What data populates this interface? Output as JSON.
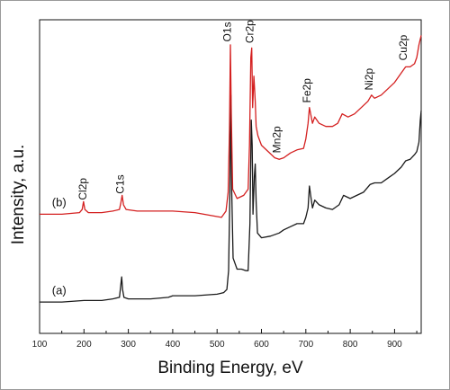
{
  "chart_data": {
    "type": "line",
    "title": "",
    "xlabel": "Binding Energy, eV",
    "ylabel": "Intensity, a.u.",
    "xlim": [
      100,
      960
    ],
    "ylim": [
      0,
      10
    ],
    "x_ticks": [
      100,
      200,
      300,
      400,
      500,
      600,
      700,
      800,
      900
    ],
    "x_tick_labels": [
      "100",
      "200",
      "300",
      "400",
      "500",
      "600",
      "700",
      "800",
      "900"
    ],
    "grid": false,
    "legend": "none",
    "series": [
      {
        "name": "(a)",
        "color": "#1a1a1a",
        "points": [
          [
            100,
            1.0
          ],
          [
            150,
            1.0
          ],
          [
            200,
            1.05
          ],
          [
            240,
            1.05
          ],
          [
            265,
            1.1
          ],
          [
            280,
            1.15
          ],
          [
            282,
            1.4
          ],
          [
            285,
            1.8
          ],
          [
            287,
            1.4
          ],
          [
            290,
            1.15
          ],
          [
            300,
            1.1
          ],
          [
            350,
            1.1
          ],
          [
            390,
            1.15
          ],
          [
            400,
            1.2
          ],
          [
            450,
            1.2
          ],
          [
            500,
            1.25
          ],
          [
            515,
            1.3
          ],
          [
            522,
            1.4
          ],
          [
            526,
            2.0
          ],
          [
            529,
            4.6
          ],
          [
            531,
            7.6
          ],
          [
            533,
            4.5
          ],
          [
            536,
            2.4
          ],
          [
            545,
            2.05
          ],
          [
            555,
            2.05
          ],
          [
            565,
            2.0
          ],
          [
            570,
            2.0
          ],
          [
            574,
            3.5
          ],
          [
            577,
            6.8
          ],
          [
            579,
            6.0
          ],
          [
            581,
            3.8
          ],
          [
            584,
            5.0
          ],
          [
            586,
            5.4
          ],
          [
            588,
            4.2
          ],
          [
            591,
            3.2
          ],
          [
            600,
            3.05
          ],
          [
            620,
            3.1
          ],
          [
            640,
            3.2
          ],
          [
            650,
            3.3
          ],
          [
            665,
            3.4
          ],
          [
            680,
            3.5
          ],
          [
            695,
            3.5
          ],
          [
            700,
            3.7
          ],
          [
            705,
            4.0
          ],
          [
            708,
            4.7
          ],
          [
            711,
            4.4
          ],
          [
            715,
            4.0
          ],
          [
            720,
            4.25
          ],
          [
            730,
            4.1
          ],
          [
            745,
            4.0
          ],
          [
            760,
            3.95
          ],
          [
            775,
            4.1
          ],
          [
            785,
            4.4
          ],
          [
            800,
            4.3
          ],
          [
            815,
            4.4
          ],
          [
            830,
            4.5
          ],
          [
            845,
            4.75
          ],
          [
            855,
            4.8
          ],
          [
            870,
            4.8
          ],
          [
            885,
            4.95
          ],
          [
            900,
            5.1
          ],
          [
            915,
            5.3
          ],
          [
            925,
            5.5
          ],
          [
            935,
            5.55
          ],
          [
            945,
            5.7
          ],
          [
            950,
            5.8
          ],
          [
            955,
            6.1
          ],
          [
            958,
            6.8
          ],
          [
            960,
            7.1
          ]
        ]
      },
      {
        "name": "(b)",
        "color": "#d42020",
        "points": [
          [
            100,
            3.8
          ],
          [
            150,
            3.8
          ],
          [
            190,
            3.85
          ],
          [
            196,
            3.95
          ],
          [
            199,
            4.2
          ],
          [
            202,
            3.95
          ],
          [
            210,
            3.85
          ],
          [
            240,
            3.85
          ],
          [
            265,
            3.9
          ],
          [
            280,
            3.95
          ],
          [
            283,
            4.15
          ],
          [
            286,
            4.4
          ],
          [
            289,
            4.1
          ],
          [
            295,
            3.95
          ],
          [
            320,
            3.9
          ],
          [
            350,
            3.9
          ],
          [
            400,
            3.9
          ],
          [
            450,
            3.85
          ],
          [
            490,
            3.75
          ],
          [
            510,
            3.7
          ],
          [
            520,
            3.9
          ],
          [
            525,
            4.5
          ],
          [
            528,
            6.5
          ],
          [
            530,
            9.2
          ],
          [
            532,
            7.0
          ],
          [
            535,
            4.6
          ],
          [
            545,
            4.3
          ],
          [
            560,
            4.4
          ],
          [
            570,
            4.6
          ],
          [
            573,
            6.0
          ],
          [
            576,
            8.8
          ],
          [
            578,
            9.1
          ],
          [
            580,
            7.2
          ],
          [
            583,
            8.2
          ],
          [
            586,
            7.4
          ],
          [
            588,
            6.6
          ],
          [
            592,
            6.3
          ],
          [
            600,
            6.0
          ],
          [
            615,
            5.8
          ],
          [
            630,
            5.6
          ],
          [
            640,
            5.55
          ],
          [
            650,
            5.6
          ],
          [
            665,
            5.75
          ],
          [
            680,
            5.85
          ],
          [
            695,
            5.9
          ],
          [
            700,
            6.2
          ],
          [
            705,
            6.7
          ],
          [
            708,
            7.2
          ],
          [
            711,
            7.0
          ],
          [
            715,
            6.7
          ],
          [
            720,
            6.9
          ],
          [
            730,
            6.7
          ],
          [
            745,
            6.6
          ],
          [
            760,
            6.6
          ],
          [
            772,
            6.7
          ],
          [
            782,
            7.0
          ],
          [
            795,
            6.9
          ],
          [
            810,
            7.0
          ],
          [
            825,
            7.2
          ],
          [
            840,
            7.4
          ],
          [
            848,
            7.6
          ],
          [
            855,
            7.5
          ],
          [
            870,
            7.6
          ],
          [
            885,
            7.8
          ],
          [
            900,
            8.0
          ],
          [
            915,
            8.3
          ],
          [
            925,
            8.5
          ],
          [
            935,
            8.5
          ],
          [
            945,
            8.6
          ],
          [
            950,
            8.8
          ],
          [
            955,
            9.2
          ],
          [
            960,
            9.5
          ]
        ]
      }
    ],
    "annotations": [
      {
        "text": "Cl2p",
        "x": 205,
        "y": 4.25,
        "rotate": -90
      },
      {
        "text": "C1s",
        "x": 290,
        "y": 4.45,
        "rotate": -90
      },
      {
        "text": "O1s",
        "x": 531,
        "y": 9.3,
        "rotate": -90
      },
      {
        "text": "Cr2p",
        "x": 582,
        "y": 9.25,
        "rotate": -90
      },
      {
        "text": "Mn2p",
        "x": 643,
        "y": 5.75,
        "rotate": -90
      },
      {
        "text": "Fe2p",
        "x": 711,
        "y": 7.35,
        "rotate": -90
      },
      {
        "text": "Ni2p",
        "x": 850,
        "y": 7.75,
        "rotate": -90
      },
      {
        "text": "Cu2p",
        "x": 928,
        "y": 8.7,
        "rotate": -90
      }
    ],
    "series_tags": [
      {
        "text": "(b)",
        "x": 128,
        "y": 4.05
      },
      {
        "text": "(a)",
        "x": 128,
        "y": 1.25
      }
    ]
  }
}
